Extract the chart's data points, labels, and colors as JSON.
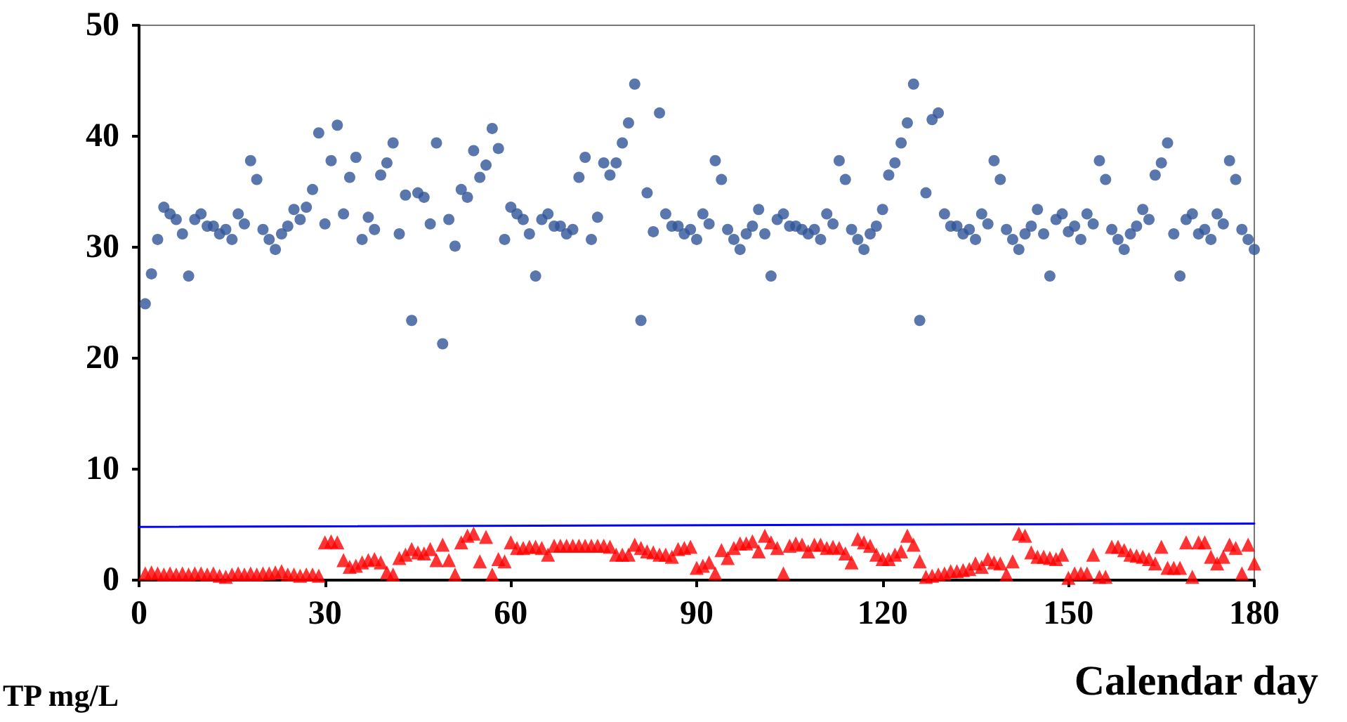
{
  "chart_data": {
    "type": "scatter",
    "xlabel": "Calendar day",
    "annotations": [
      "TP mg/L"
    ],
    "x": [
      1,
      2,
      3,
      4,
      5,
      6,
      7,
      8,
      9,
      10,
      11,
      12,
      13,
      14,
      15,
      16,
      17,
      18,
      19,
      20,
      21,
      22,
      23,
      24,
      25,
      26,
      27,
      28,
      29,
      30,
      31,
      32,
      33,
      34,
      35,
      36,
      37,
      38,
      39,
      40,
      41,
      42,
      43,
      44,
      45,
      46,
      47,
      48,
      49,
      50,
      51,
      52,
      53,
      54,
      55,
      56,
      57,
      58,
      59,
      60,
      61,
      62,
      63,
      64,
      65,
      66,
      67,
      68,
      69,
      70,
      71,
      72,
      73,
      74,
      75,
      76,
      77,
      78,
      79,
      80,
      81,
      82,
      83,
      84,
      85,
      86,
      87,
      88,
      89,
      90,
      91,
      92,
      93,
      94,
      95,
      96,
      97,
      98,
      99,
      100,
      101,
      102,
      103,
      104,
      105,
      106,
      107,
      108,
      109,
      110,
      111,
      112,
      113,
      114,
      115,
      116,
      117,
      118,
      119,
      120,
      121,
      122,
      123,
      124,
      125,
      126,
      127,
      128,
      129,
      130,
      131,
      132,
      133,
      134,
      135,
      136,
      137,
      138,
      139,
      140,
      141,
      142,
      143,
      144,
      145,
      146,
      147,
      148,
      149,
      150,
      151,
      152,
      153,
      154,
      155,
      156,
      157,
      158,
      159,
      160,
      161,
      162,
      163,
      164,
      165,
      166,
      167,
      168,
      169,
      170,
      171,
      172,
      173,
      174,
      175,
      176,
      177,
      178,
      179,
      180
    ],
    "series": [
      {
        "marker": "circle",
        "color": "#2f5597",
        "values": [
          24.9,
          27.6,
          30.7,
          33.6,
          33.0,
          32.5,
          31.2,
          27.4,
          32.5,
          33.0,
          31.9,
          31.9,
          31.2,
          31.6,
          30.7,
          33.0,
          32.1,
          37.8,
          36.1,
          31.6,
          30.7,
          29.8,
          31.2,
          31.9,
          33.4,
          32.5,
          33.6,
          35.2,
          40.3,
          32.1,
          37.8,
          41.0,
          33.0,
          36.3,
          38.1,
          30.7,
          32.7,
          31.6,
          36.5,
          37.6,
          39.4,
          31.2,
          34.7,
          23.4,
          34.9,
          34.5,
          32.1,
          39.4,
          21.3,
          32.5,
          30.1,
          35.2,
          34.5,
          38.7,
          36.3,
          37.4,
          40.7,
          38.9,
          30.7,
          33.6,
          33.0,
          32.5,
          31.2,
          27.4,
          32.5,
          33.0,
          31.9,
          31.9,
          31.2,
          31.6,
          36.3,
          38.1,
          30.7,
          32.7,
          37.6,
          36.5,
          37.6,
          39.4,
          41.2,
          44.7,
          23.4,
          34.9,
          31.4,
          42.1,
          33.0,
          31.9,
          31.9,
          31.2,
          31.6,
          30.7,
          33.0,
          32.1,
          37.8,
          36.1,
          31.6,
          30.7,
          29.8,
          31.2,
          31.9,
          33.4,
          31.2,
          27.4,
          32.5,
          33.0,
          31.9,
          31.9,
          31.6,
          31.2,
          31.6,
          30.7,
          33.0,
          32.1,
          37.8,
          36.1,
          31.6,
          30.7,
          29.8,
          31.2,
          31.9,
          33.4,
          36.5,
          37.6,
          39.4,
          41.2,
          44.7,
          23.4,
          34.9,
          41.5,
          42.1,
          33.0,
          31.9,
          31.9,
          31.2,
          31.6,
          30.7,
          33.0,
          32.1,
          37.8,
          36.1,
          31.6,
          30.7,
          29.8,
          31.2,
          31.9,
          33.4,
          31.2,
          27.4,
          32.5,
          33.0,
          31.4,
          31.9,
          30.7,
          33.0,
          32.1,
          37.8,
          36.1,
          31.6,
          30.7,
          29.8,
          31.2,
          31.9,
          33.4,
          32.5,
          36.5,
          37.6,
          39.4,
          31.2,
          27.4,
          32.5,
          33.0,
          31.2,
          31.6,
          30.7,
          33.0,
          32.1,
          37.8,
          36.1,
          31.6,
          30.7,
          29.8
        ]
      },
      {
        "marker": "triangle",
        "color": "#ff0000",
        "values": [
          0.6,
          0.7,
          0.6,
          0.5,
          0.6,
          0.5,
          0.6,
          0.5,
          0.6,
          0.6,
          0.5,
          0.6,
          0.4,
          0.3,
          0.5,
          0.6,
          0.5,
          0.6,
          0.5,
          0.6,
          0.6,
          0.7,
          0.8,
          0.5,
          0.5,
          0.4,
          0.5,
          0.5,
          0.4,
          3.4,
          3.5,
          3.4,
          1.8,
          1.2,
          1.3,
          1.6,
          1.8,
          1.9,
          1.6,
          0.7,
          0.5,
          2.0,
          2.3,
          2.8,
          2.5,
          2.4,
          2.8,
          1.8,
          3.2,
          1.8,
          0.5,
          3.4,
          4.0,
          4.2,
          1.7,
          3.9,
          0.5,
          1.9,
          1.7,
          3.4,
          2.9,
          2.9,
          3.0,
          3.0,
          2.9,
          2.3,
          3.1,
          3.1,
          3.1,
          3.1,
          3.1,
          3.1,
          3.1,
          3.1,
          3.1,
          3.0,
          2.3,
          2.3,
          2.3,
          3.2,
          2.9,
          2.6,
          2.5,
          2.3,
          2.3,
          2.1,
          2.8,
          2.9,
          3.0,
          1.1,
          1.3,
          1.6,
          0.6,
          2.7,
          2.0,
          2.9,
          3.3,
          3.3,
          3.5,
          2.6,
          4.0,
          3.4,
          2.9,
          0.6,
          3.1,
          3.3,
          3.2,
          2.6,
          3.2,
          3.2,
          2.9,
          3.0,
          2.9,
          2.4,
          1.6,
          3.7,
          3.4,
          3.1,
          2.3,
          1.9,
          1.9,
          2.3,
          2.6,
          4.0,
          3.2,
          1.7,
          0.3,
          0.4,
          0.5,
          0.6,
          0.8,
          0.8,
          0.9,
          1.0,
          1.5,
          1.2,
          1.9,
          1.6,
          1.5,
          0.5,
          1.7,
          4.2,
          4.0,
          2.5,
          2.1,
          2.1,
          2.0,
          1.9,
          2.3,
          0.2,
          0.6,
          0.6,
          0.6,
          2.3,
          0.3,
          0.3,
          3.0,
          3.0,
          2.7,
          2.3,
          2.2,
          2.1,
          1.9,
          1.5,
          3.0,
          1.1,
          1.1,
          1.1,
          3.4,
          0.3,
          3.4,
          3.4,
          2.1,
          1.5,
          2.1,
          3.2,
          2.9,
          0.6,
          3.2,
          1.5
        ]
      },
      {
        "type": "line",
        "marker": "none",
        "line_style": "solid",
        "color": "#0000ff",
        "x": [
          0,
          180
        ],
        "values": [
          4.8,
          5.1
        ]
      }
    ],
    "xlim": [
      0,
      180
    ],
    "xticks": [
      0,
      30,
      60,
      90,
      120,
      150,
      180
    ],
    "ylim": [
      0,
      50
    ],
    "yticks": [
      0,
      10,
      20,
      30,
      40,
      50
    ],
    "grid": false
  }
}
